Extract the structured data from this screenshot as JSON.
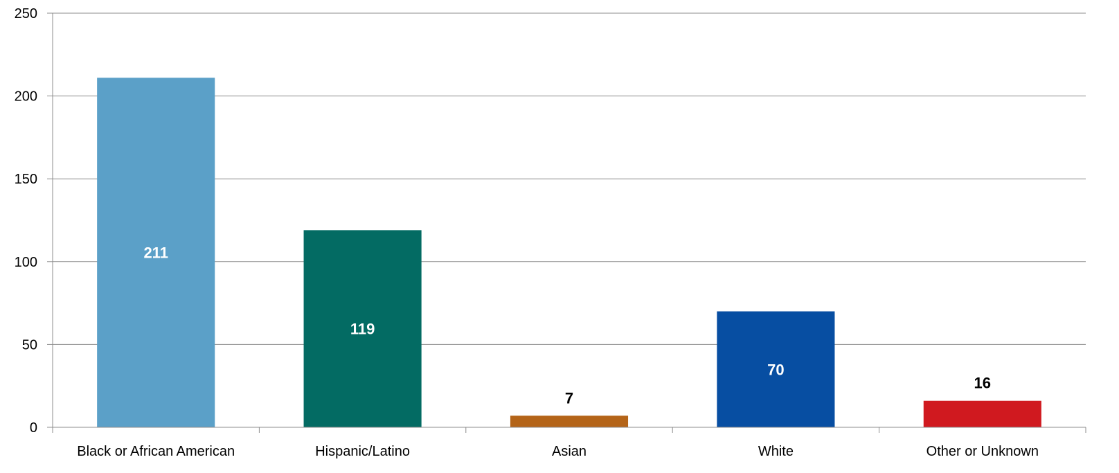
{
  "chart_data": {
    "type": "bar",
    "categories": [
      "Black or African American",
      "Hispanic/Latino",
      "Asian",
      "White",
      "Other or Unknown"
    ],
    "values": [
      211,
      119,
      7,
      70,
      16
    ],
    "colors": [
      "#5BA0C8",
      "#036B63",
      "#B46418",
      "#074EA2",
      "#D0191F"
    ],
    "label_colors": [
      "#FFFFFF",
      "#FFFFFF",
      "#000000",
      "#FFFFFF",
      "#000000"
    ],
    "label_position": [
      "inside",
      "inside",
      "above",
      "inside",
      "above"
    ],
    "ylim": [
      0,
      250
    ],
    "yticks": [
      0,
      50,
      100,
      150,
      200,
      250
    ],
    "grid": true,
    "legend": "none"
  }
}
